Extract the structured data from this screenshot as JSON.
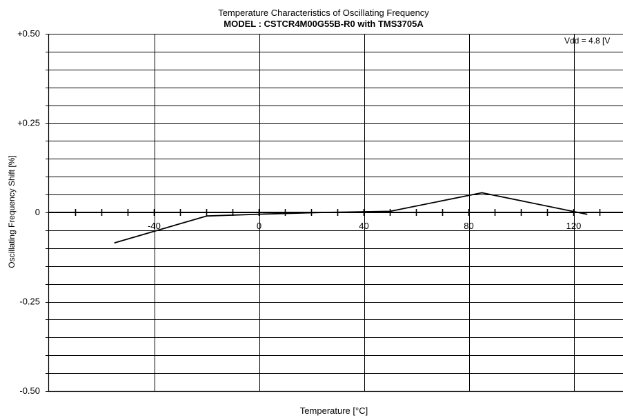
{
  "chart_data": {
    "type": "line",
    "title": "Temperature Characteristics of Oscillating Frequency",
    "subtitle": "MODEL : CSTCR4M00G55B-R0 with TMS3705A",
    "xlabel": "Temperature [°C]",
    "ylabel": "Oscillating Frequency Shift [%]",
    "annotation": "Vdd = 4.8 [V",
    "xlim": [
      -80,
      140
    ],
    "ylim": [
      -0.5,
      0.5
    ],
    "x_ticks_labeled": [
      {
        "value": -40,
        "label": "-40"
      },
      {
        "value": 0,
        "label": "0"
      },
      {
        "value": 40,
        "label": "40"
      },
      {
        "value": 80,
        "label": "80"
      },
      {
        "value": 120,
        "label": "120"
      }
    ],
    "y_ticks_labeled": [
      {
        "value": 0.5,
        "label": "+0.50"
      },
      {
        "value": 0.25,
        "label": "+0.25"
      },
      {
        "value": 0,
        "label": "0"
      },
      {
        "value": -0.25,
        "label": "-0.25"
      },
      {
        "value": -0.5,
        "label": "-0.50"
      }
    ],
    "x_gridlines": [
      -40,
      0,
      40,
      80,
      120
    ],
    "y_gridline_step": 0.05,
    "x_minor_tick_step": 10,
    "grid": true,
    "line_color": "#000000",
    "series": [
      {
        "x": [
          -55,
          -20,
          0,
          25,
          50,
          85,
          125
        ],
        "y": [
          -0.085,
          -0.01,
          -0.005,
          0,
          0.003,
          0.055,
          -0.005
        ]
      }
    ]
  }
}
